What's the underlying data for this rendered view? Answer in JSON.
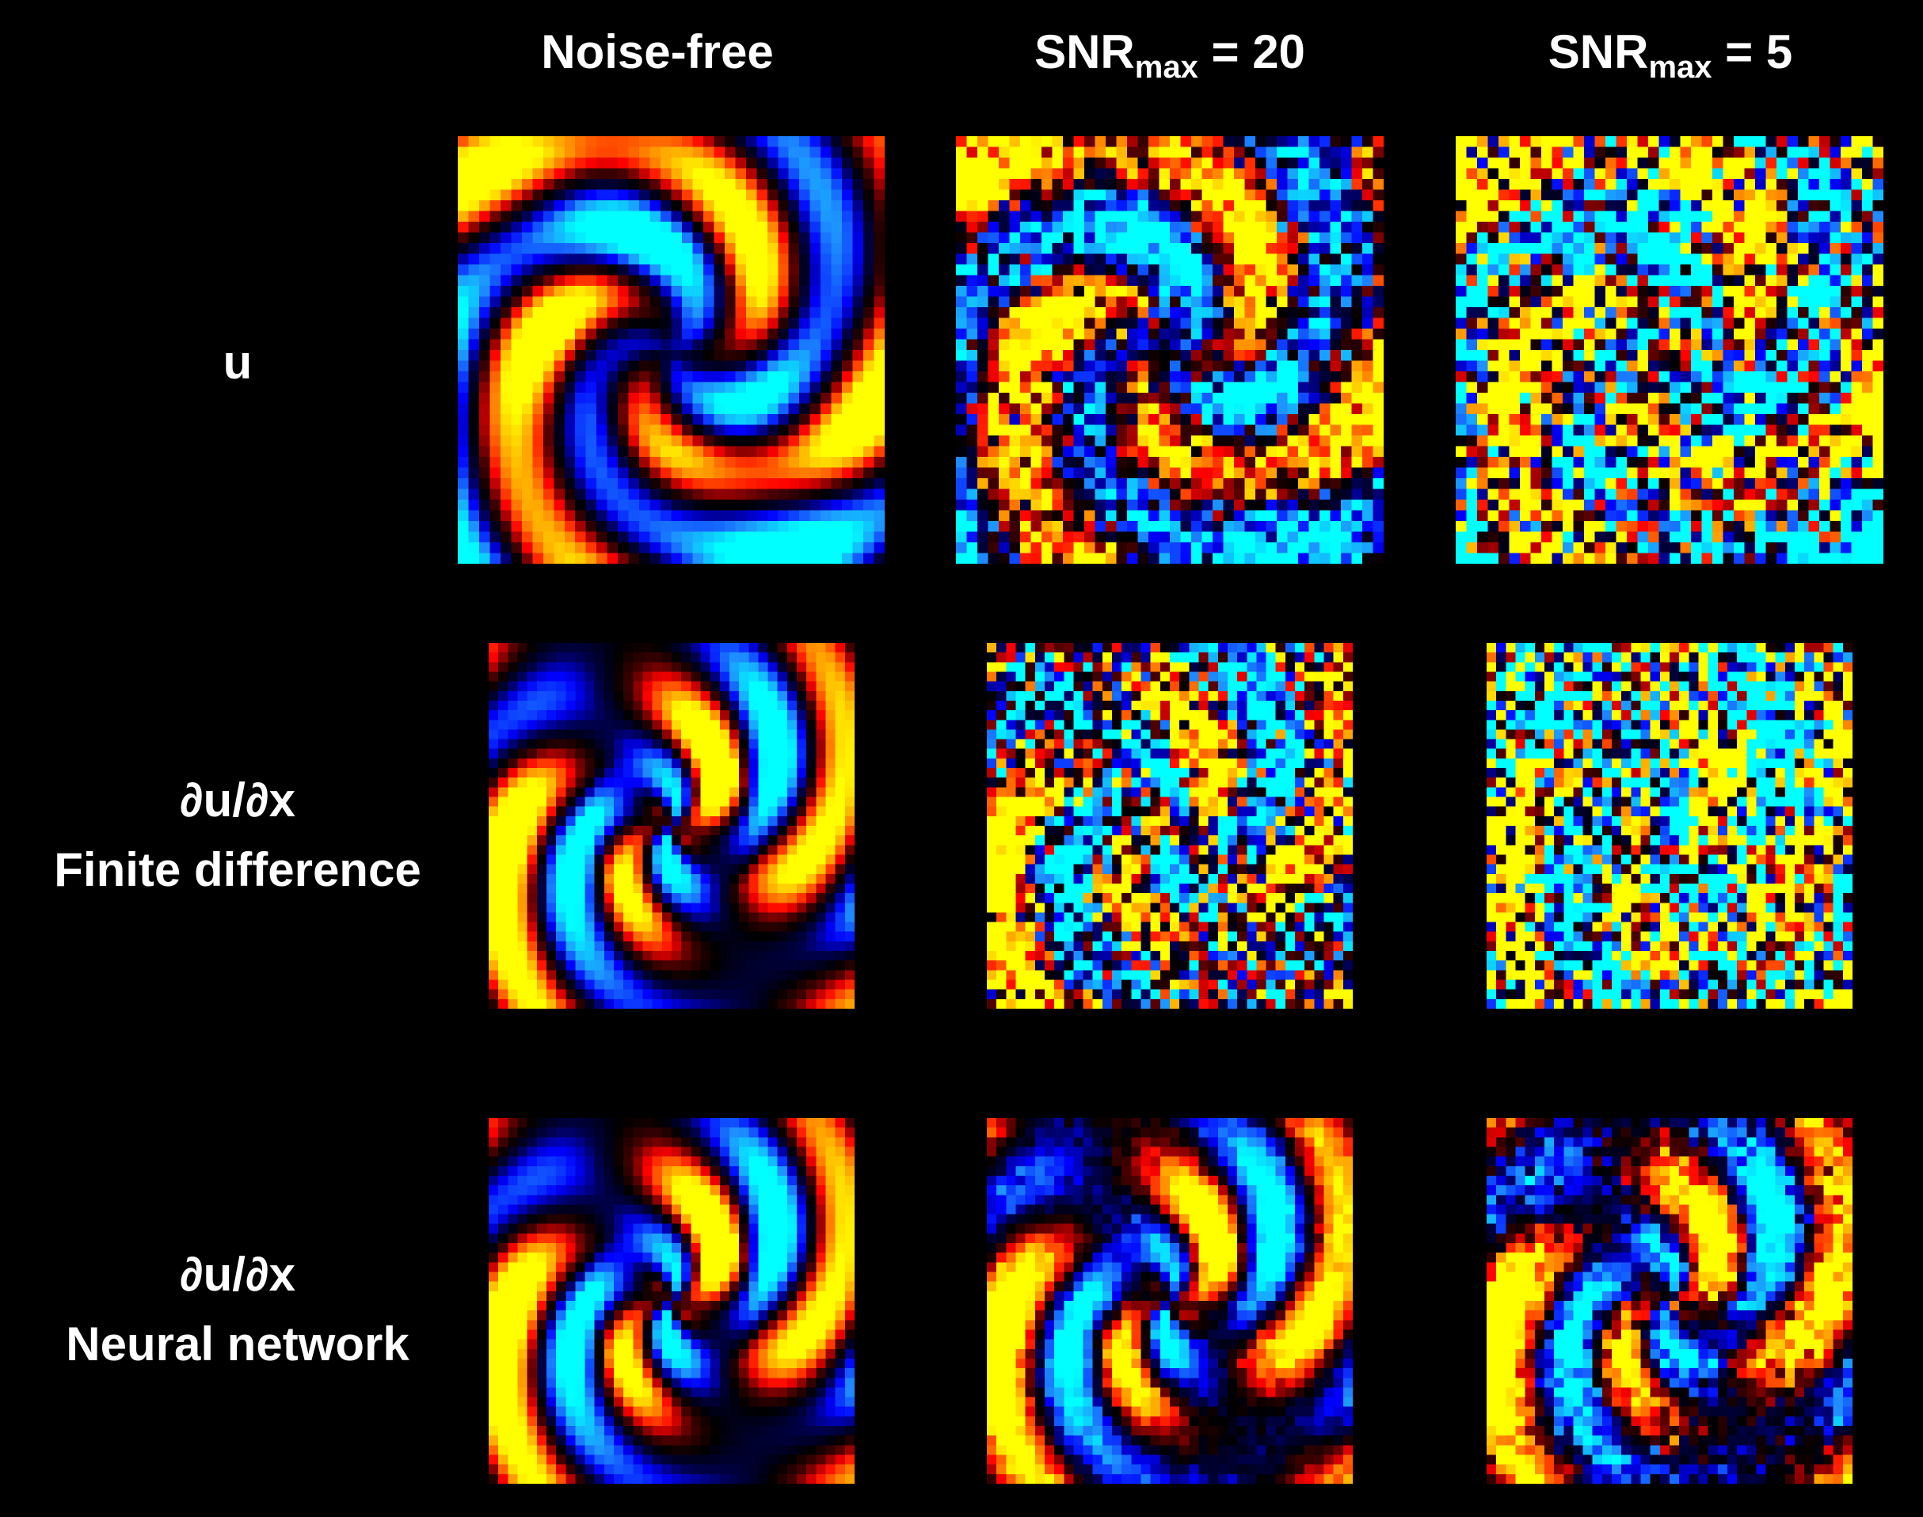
{
  "columns": {
    "noise_free": "Noise-free",
    "snr20": {
      "base": "SNR",
      "sub": "max",
      "rest": " = 20"
    },
    "snr5": {
      "base": "SNR",
      "sub": "max",
      "rest": " = 5"
    }
  },
  "rows": {
    "u": {
      "line1": "u"
    },
    "fd": {
      "line1": "∂u/∂x",
      "line2": "Finite difference"
    },
    "nn": {
      "line1": "∂u/∂x",
      "line2": "Neural network"
    }
  },
  "colormap": [
    "#00ffff",
    "#1e90ff",
    "#0000ff",
    "#00004a",
    "#000000",
    "#4a0000",
    "#ff0000",
    "#ff8c00",
    "#ffff00"
  ],
  "background": "#000000"
}
